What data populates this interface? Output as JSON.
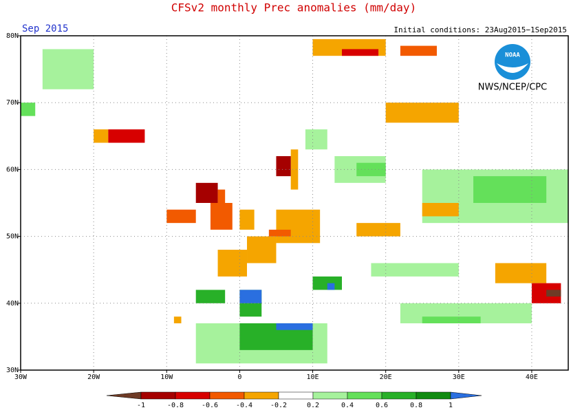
{
  "chart_data": {
    "type": "grid_map",
    "title": "CFSv2 monthly Prec anomalies (mm/day)",
    "subtitle": "Sep 2015",
    "note": "Initial conditions: 23Aug2015−1Sep2015",
    "logo_text": "NOAA",
    "credit": "NWS/NCEP/CPC",
    "xlim": [
      -30,
      45
    ],
    "ylim": [
      30,
      80
    ],
    "xticks": [
      {
        "value": -30,
        "label": "30W"
      },
      {
        "value": -20,
        "label": "20W"
      },
      {
        "value": -10,
        "label": "10W"
      },
      0,
      {
        "value": 10,
        "label": "10E"
      },
      {
        "value": 20,
        "label": "20E"
      },
      {
        "value": 30,
        "label": "30E"
      },
      {
        "value": 40,
        "label": "40E"
      }
    ],
    "yticks": [
      {
        "value": 30,
        "label": "30N"
      },
      {
        "value": 40,
        "label": "40N"
      },
      {
        "value": 50,
        "label": "50N"
      },
      {
        "value": 60,
        "label": "60N"
      },
      {
        "value": 70,
        "label": "70N"
      },
      {
        "value": 80,
        "label": "80N"
      }
    ],
    "grid": true,
    "levels": [
      -1,
      -0.8,
      -0.6,
      -0.4,
      -0.2,
      0.2,
      0.4,
      0.6,
      0.8,
      1
    ],
    "colors": [
      "#6e3b26",
      "#a50000",
      "#d70000",
      "#f25a00",
      "#f5a500",
      "#ffffff",
      "#a6f29c",
      "#64e05a",
      "#28b028",
      "#108a10",
      "#2a6fe0"
    ],
    "cells": [
      {
        "lon": [
          -30,
          -28
        ],
        "lat": [
          68,
          70
        ],
        "value": 0.5
      },
      {
        "lon": [
          -27,
          -20
        ],
        "lat": [
          72,
          78
        ],
        "value": 0.3
      },
      {
        "lon": [
          -20,
          -18
        ],
        "lat": [
          64,
          66
        ],
        "value": -0.3
      },
      {
        "lon": [
          -18,
          -13
        ],
        "lat": [
          64,
          66
        ],
        "value": -0.7
      },
      {
        "lon": [
          10,
          20
        ],
        "lat": [
          77,
          79.5
        ],
        "value": -0.3
      },
      {
        "lon": [
          14,
          19
        ],
        "lat": [
          77,
          78
        ],
        "value": -0.7
      },
      {
        "lon": [
          22,
          27
        ],
        "lat": [
          77,
          78.5
        ],
        "value": -0.6
      },
      {
        "lon": [
          20,
          30
        ],
        "lat": [
          67,
          70
        ],
        "value": -0.3
      },
      {
        "lon": [
          9,
          12
        ],
        "lat": [
          63,
          66
        ],
        "value": 0.3
      },
      {
        "lon": [
          13,
          20
        ],
        "lat": [
          58,
          62
        ],
        "value": 0.3
      },
      {
        "lon": [
          16,
          20
        ],
        "lat": [
          59,
          61
        ],
        "value": 0.5
      },
      {
        "lon": [
          7,
          8
        ],
        "lat": [
          57,
          63
        ],
        "value": -0.3
      },
      {
        "lon": [
          5,
          7
        ],
        "lat": [
          59,
          62
        ],
        "value": -0.9
      },
      {
        "lon": [
          25,
          45
        ],
        "lat": [
          52,
          60
        ],
        "value": 0.3
      },
      {
        "lon": [
          32,
          42
        ],
        "lat": [
          55,
          59
        ],
        "value": 0.5
      },
      {
        "lon": [
          25,
          30
        ],
        "lat": [
          53,
          55
        ],
        "value": -0.3
      },
      {
        "lon": [
          -6,
          -3
        ],
        "lat": [
          55,
          58
        ],
        "value": -0.9
      },
      {
        "lon": [
          -3,
          -2
        ],
        "lat": [
          55,
          57
        ],
        "value": -0.5
      },
      {
        "lon": [
          -10,
          -6
        ],
        "lat": [
          52,
          54
        ],
        "value": -0.6
      },
      {
        "lon": [
          -4,
          -1
        ],
        "lat": [
          51,
          55
        ],
        "value": -0.6
      },
      {
        "lon": [
          0,
          2
        ],
        "lat": [
          51,
          54
        ],
        "value": -0.3
      },
      {
        "lon": [
          -3,
          1
        ],
        "lat": [
          44,
          48
        ],
        "value": -0.3
      },
      {
        "lon": [
          1,
          5
        ],
        "lat": [
          46,
          50
        ],
        "value": -0.3
      },
      {
        "lon": [
          5,
          11
        ],
        "lat": [
          49,
          54
        ],
        "value": -0.3
      },
      {
        "lon": [
          4,
          7
        ],
        "lat": [
          50,
          51
        ],
        "value": -0.5
      },
      {
        "lon": [
          16,
          22
        ],
        "lat": [
          50,
          52
        ],
        "value": -0.3
      },
      {
        "lon": [
          18,
          30
        ],
        "lat": [
          44,
          46
        ],
        "value": 0.3
      },
      {
        "lon": [
          22,
          40
        ],
        "lat": [
          37,
          40
        ],
        "value": 0.3
      },
      {
        "lon": [
          25,
          33
        ],
        "lat": [
          37,
          38
        ],
        "value": 0.5
      },
      {
        "lon": [
          -6,
          12
        ],
        "lat": [
          31,
          37
        ],
        "value": 0.3
      },
      {
        "lon": [
          0,
          10
        ],
        "lat": [
          33,
          37
        ],
        "value": 0.7
      },
      {
        "lon": [
          5,
          10
        ],
        "lat": [
          36,
          37
        ],
        "value": 1.2
      },
      {
        "lon": [
          -6,
          -2
        ],
        "lat": [
          40,
          42
        ],
        "value": 0.7
      },
      {
        "lon": [
          0,
          3
        ],
        "lat": [
          38,
          42
        ],
        "value": 0.6
      },
      {
        "lon": [
          0,
          3
        ],
        "lat": [
          40,
          42
        ],
        "value": 1.2
      },
      {
        "lon": [
          10,
          14
        ],
        "lat": [
          42,
          44
        ],
        "value": 0.7
      },
      {
        "lon": [
          12,
          13
        ],
        "lat": [
          42,
          43
        ],
        "value": 1.2
      },
      {
        "lon": [
          -9,
          -8
        ],
        "lat": [
          37,
          38
        ],
        "value": -0.3
      },
      {
        "lon": [
          35,
          42
        ],
        "lat": [
          43,
          46
        ],
        "value": -0.3
      },
      {
        "lon": [
          40,
          44
        ],
        "lat": [
          40,
          43
        ],
        "value": -0.7
      },
      {
        "lon": [
          42,
          44
        ],
        "lat": [
          41,
          42
        ],
        "value": -1.2
      }
    ]
  }
}
